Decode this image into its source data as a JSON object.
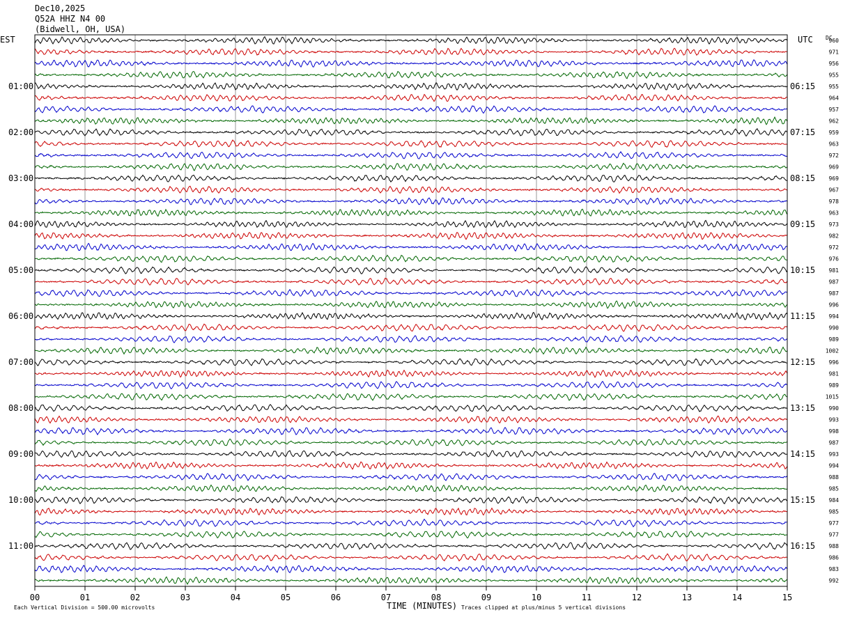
{
  "header": {
    "date": "Dec10,2025",
    "station": "Q52A HHZ N4 00",
    "location": "(Bidwell, OH, USA)"
  },
  "left_zone_label": "EST",
  "right_zone_label": "UTC",
  "dc_label": "DC",
  "chart_data": {
    "type": "line",
    "title": "Dec10,2025  Q52A HHZ N4 00  (Bidwell, OH, USA)",
    "xlabel": "TIME (MINUTES)",
    "ylabel": "",
    "x_ticks": [
      "00",
      "01",
      "02",
      "03",
      "04",
      "05",
      "06",
      "07",
      "08",
      "09",
      "10",
      "11",
      "12",
      "13",
      "14",
      "15"
    ],
    "xlim": [
      0,
      15
    ],
    "grid": true,
    "left_hour_labels": [
      "01:00",
      "02:00",
      "03:00",
      "04:00",
      "05:00",
      "06:00",
      "07:00",
      "08:00",
      "09:00",
      "10:00",
      "11:00"
    ],
    "right_hour_labels": [
      "06:15",
      "07:15",
      "08:15",
      "09:15",
      "10:15",
      "11:15",
      "12:15",
      "13:15",
      "14:15",
      "15:15",
      "16:15"
    ],
    "trace_colors": [
      "#000000",
      "#cc0000",
      "#0000cc",
      "#006600"
    ],
    "dc_offsets": [
      960,
      971,
      956,
      955,
      955,
      964,
      957,
      962,
      959,
      963,
      972,
      969,
      969,
      967,
      978,
      963,
      973,
      982,
      972,
      976,
      981,
      987,
      987,
      996,
      994,
      990,
      989,
      1002,
      996,
      981,
      989,
      1015,
      990,
      993,
      998,
      987,
      993,
      994,
      988,
      985,
      984,
      985,
      977,
      977,
      988,
      986,
      983,
      992
    ],
    "annotation_left": "Each Vertical Division =  500.00 microvolts",
    "annotation_right": "Traces clipped at plus/minus 5 vertical divisions"
  }
}
